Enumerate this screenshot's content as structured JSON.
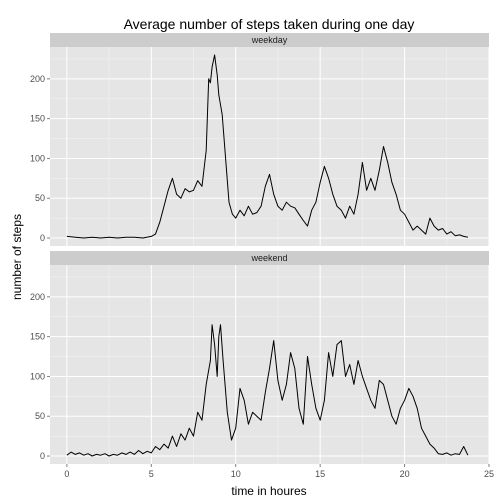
{
  "chart_data": {
    "type": "line",
    "title": "Average number of steps taken during one day",
    "xlabel": "time in houres",
    "ylabel": "number of steps",
    "xlim": [
      -1,
      25
    ],
    "ylim": [
      -10,
      240
    ],
    "x_ticks": [
      0,
      5,
      10,
      15,
      20,
      25
    ],
    "y_ticks": [
      0,
      50,
      100,
      150,
      200
    ],
    "grid": true,
    "facets": [
      {
        "label": "weekday",
        "points": [
          [
            0,
            2
          ],
          [
            0.5,
            1
          ],
          [
            1,
            0
          ],
          [
            1.5,
            1
          ],
          [
            2,
            0
          ],
          [
            2.5,
            1
          ],
          [
            3,
            0
          ],
          [
            3.5,
            1
          ],
          [
            4,
            1
          ],
          [
            4.5,
            0
          ],
          [
            5,
            2
          ],
          [
            5.25,
            5
          ],
          [
            5.5,
            20
          ],
          [
            5.75,
            40
          ],
          [
            6,
            60
          ],
          [
            6.25,
            75
          ],
          [
            6.5,
            55
          ],
          [
            6.75,
            50
          ],
          [
            7,
            62
          ],
          [
            7.25,
            58
          ],
          [
            7.5,
            60
          ],
          [
            7.75,
            72
          ],
          [
            8,
            65
          ],
          [
            8.25,
            110
          ],
          [
            8.4,
            200
          ],
          [
            8.5,
            195
          ],
          [
            8.6,
            215
          ],
          [
            8.75,
            230
          ],
          [
            8.9,
            205
          ],
          [
            9,
            180
          ],
          [
            9.2,
            155
          ],
          [
            9.4,
            100
          ],
          [
            9.6,
            45
          ],
          [
            9.8,
            30
          ],
          [
            10,
            25
          ],
          [
            10.25,
            35
          ],
          [
            10.5,
            28
          ],
          [
            10.75,
            40
          ],
          [
            11,
            30
          ],
          [
            11.25,
            32
          ],
          [
            11.5,
            40
          ],
          [
            11.75,
            65
          ],
          [
            12,
            80
          ],
          [
            12.25,
            55
          ],
          [
            12.5,
            40
          ],
          [
            12.75,
            35
          ],
          [
            13,
            45
          ],
          [
            13.25,
            40
          ],
          [
            13.5,
            38
          ],
          [
            13.75,
            30
          ],
          [
            14,
            22
          ],
          [
            14.25,
            15
          ],
          [
            14.5,
            35
          ],
          [
            14.75,
            45
          ],
          [
            15,
            70
          ],
          [
            15.25,
            90
          ],
          [
            15.5,
            75
          ],
          [
            15.75,
            55
          ],
          [
            16,
            40
          ],
          [
            16.25,
            35
          ],
          [
            16.5,
            25
          ],
          [
            16.75,
            40
          ],
          [
            17,
            30
          ],
          [
            17.25,
            55
          ],
          [
            17.5,
            95
          ],
          [
            17.75,
            60
          ],
          [
            18,
            75
          ],
          [
            18.25,
            60
          ],
          [
            18.5,
            85
          ],
          [
            18.75,
            115
          ],
          [
            19,
            95
          ],
          [
            19.25,
            70
          ],
          [
            19.5,
            55
          ],
          [
            19.75,
            35
          ],
          [
            20,
            30
          ],
          [
            20.25,
            20
          ],
          [
            20.5,
            10
          ],
          [
            20.75,
            15
          ],
          [
            21,
            10
          ],
          [
            21.25,
            5
          ],
          [
            21.5,
            25
          ],
          [
            21.75,
            15
          ],
          [
            22,
            10
          ],
          [
            22.25,
            12
          ],
          [
            22.5,
            5
          ],
          [
            22.75,
            8
          ],
          [
            23,
            3
          ],
          [
            23.25,
            4
          ],
          [
            23.5,
            2
          ],
          [
            23.75,
            1
          ]
        ]
      },
      {
        "label": "weekend",
        "points": [
          [
            0,
            1
          ],
          [
            0.25,
            5
          ],
          [
            0.5,
            2
          ],
          [
            0.75,
            4
          ],
          [
            1,
            1
          ],
          [
            1.25,
            3
          ],
          [
            1.5,
            0
          ],
          [
            1.75,
            2
          ],
          [
            2,
            1
          ],
          [
            2.25,
            3
          ],
          [
            2.5,
            0
          ],
          [
            2.75,
            2
          ],
          [
            3,
            1
          ],
          [
            3.25,
            4
          ],
          [
            3.5,
            2
          ],
          [
            3.75,
            5
          ],
          [
            4,
            2
          ],
          [
            4.25,
            7
          ],
          [
            4.5,
            3
          ],
          [
            4.75,
            6
          ],
          [
            5,
            4
          ],
          [
            5.25,
            12
          ],
          [
            5.5,
            8
          ],
          [
            5.75,
            15
          ],
          [
            6,
            10
          ],
          [
            6.25,
            25
          ],
          [
            6.5,
            12
          ],
          [
            6.75,
            28
          ],
          [
            7,
            20
          ],
          [
            7.25,
            35
          ],
          [
            7.5,
            25
          ],
          [
            7.75,
            55
          ],
          [
            8,
            45
          ],
          [
            8.25,
            90
          ],
          [
            8.5,
            120
          ],
          [
            8.6,
            165
          ],
          [
            8.75,
            140
          ],
          [
            8.9,
            100
          ],
          [
            9,
            150
          ],
          [
            9.1,
            165
          ],
          [
            9.25,
            120
          ],
          [
            9.5,
            55
          ],
          [
            9.75,
            20
          ],
          [
            10,
            35
          ],
          [
            10.25,
            85
          ],
          [
            10.5,
            70
          ],
          [
            10.75,
            40
          ],
          [
            11,
            55
          ],
          [
            11.25,
            50
          ],
          [
            11.5,
            45
          ],
          [
            11.75,
            80
          ],
          [
            12,
            110
          ],
          [
            12.25,
            145
          ],
          [
            12.5,
            95
          ],
          [
            12.75,
            70
          ],
          [
            13,
            90
          ],
          [
            13.25,
            130
          ],
          [
            13.5,
            110
          ],
          [
            13.75,
            60
          ],
          [
            14,
            40
          ],
          [
            14.25,
            125
          ],
          [
            14.5,
            90
          ],
          [
            14.75,
            60
          ],
          [
            15,
            45
          ],
          [
            15.25,
            70
          ],
          [
            15.5,
            130
          ],
          [
            15.75,
            100
          ],
          [
            16,
            140
          ],
          [
            16.25,
            145
          ],
          [
            16.5,
            100
          ],
          [
            16.75,
            115
          ],
          [
            17,
            90
          ],
          [
            17.25,
            120
          ],
          [
            17.5,
            100
          ],
          [
            17.75,
            85
          ],
          [
            18,
            70
          ],
          [
            18.25,
            60
          ],
          [
            18.5,
            95
          ],
          [
            18.75,
            90
          ],
          [
            19,
            70
          ],
          [
            19.25,
            50
          ],
          [
            19.5,
            40
          ],
          [
            19.75,
            60
          ],
          [
            20,
            70
          ],
          [
            20.25,
            85
          ],
          [
            20.5,
            75
          ],
          [
            20.75,
            60
          ],
          [
            21,
            35
          ],
          [
            21.25,
            25
          ],
          [
            21.5,
            15
          ],
          [
            21.75,
            10
          ],
          [
            22,
            3
          ],
          [
            22.25,
            2
          ],
          [
            22.5,
            4
          ],
          [
            22.75,
            1
          ],
          [
            23,
            3
          ],
          [
            23.25,
            2
          ],
          [
            23.5,
            12
          ],
          [
            23.75,
            1
          ]
        ]
      }
    ]
  }
}
